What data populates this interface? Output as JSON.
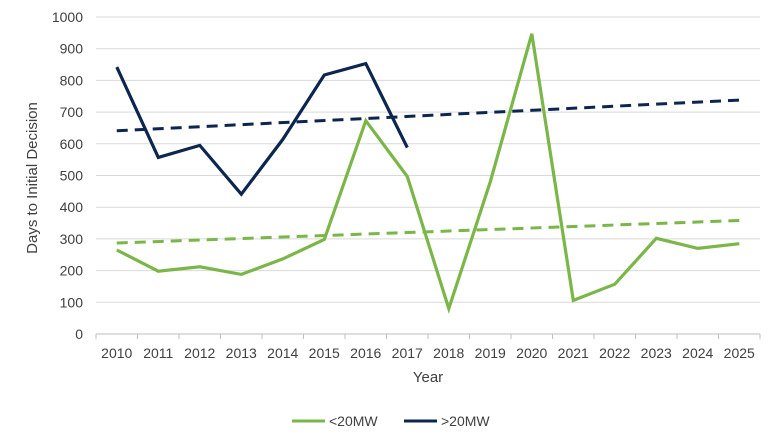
{
  "chart_data": {
    "type": "line",
    "title": "",
    "xlabel": "Year",
    "ylabel": "Days to Initial Decision",
    "ylim": [
      0,
      1000
    ],
    "y_ticks": [
      "0",
      "100",
      "200",
      "300",
      "400",
      "500",
      "600",
      "700",
      "800",
      "900",
      "1000"
    ],
    "categories": [
      "2010",
      "2011",
      "2012",
      "2013",
      "2014",
      "2015",
      "2016",
      "2017",
      "2018",
      "2019",
      "2020",
      "2021",
      "2022",
      "2023",
      "2024",
      "2025"
    ],
    "grid": "horizontal",
    "legend_position": "bottom",
    "series": [
      {
        "name": "<20MW",
        "color": "#7ab648",
        "values": [
          265,
          198,
          212,
          188,
          237,
          298,
          673,
          497,
          80,
          480,
          947,
          106,
          157,
          302,
          270,
          285
        ],
        "trendline": {
          "start": 287,
          "end": 358
        }
      },
      {
        "name": ">20MW",
        "color": "#0c2650",
        "values": [
          842,
          557,
          595,
          441,
          614,
          817,
          853,
          588,
          null,
          null,
          null,
          null,
          null,
          null,
          null,
          null
        ],
        "trendline": {
          "start": 641,
          "end": 738
        }
      }
    ]
  }
}
